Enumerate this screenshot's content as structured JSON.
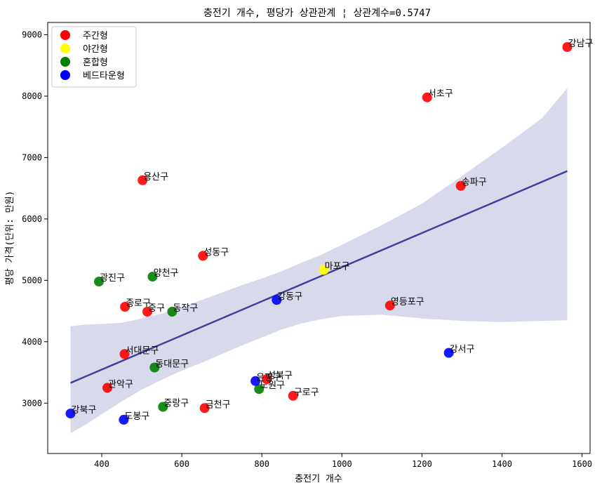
{
  "chart_data": {
    "type": "scatter",
    "title": "충전기 개수, 평당가 상관관계 ¦ 상관계수=0.5747",
    "xlabel": "충전기 개수",
    "ylabel": "평당 가격(단위: 만원)",
    "xlim": [
      265,
      1620
    ],
    "ylim": [
      2180,
      9200
    ],
    "xticks": [
      400,
      600,
      800,
      1000,
      1200,
      1400,
      1600
    ],
    "yticks": [
      3000,
      4000,
      5000,
      6000,
      7000,
      8000,
      9000
    ],
    "grid": false,
    "legend_position": "top-left",
    "categories": [
      {
        "key": "day",
        "name": "주간형",
        "color": "#ff0000"
      },
      {
        "key": "night",
        "name": "야간형",
        "color": "#ffff00"
      },
      {
        "key": "mixed",
        "name": "혼합형",
        "color": "#008000"
      },
      {
        "key": "bed",
        "name": "베드타운형",
        "color": "#0000ff"
      }
    ],
    "points": [
      {
        "label": "강남구",
        "x": 1563,
        "y": 8800,
        "cat": "day"
      },
      {
        "label": "서초구",
        "x": 1213,
        "y": 7980,
        "cat": "day"
      },
      {
        "label": "송파구",
        "x": 1297,
        "y": 6540,
        "cat": "day"
      },
      {
        "label": "용산구",
        "x": 502,
        "y": 6630,
        "cat": "day"
      },
      {
        "label": "성동구",
        "x": 653,
        "y": 5400,
        "cat": "day"
      },
      {
        "label": "종로구",
        "x": 458,
        "y": 4570,
        "cat": "day"
      },
      {
        "label": "중구",
        "x": 514,
        "y": 4490,
        "cat": "day"
      },
      {
        "label": "영등포구",
        "x": 1120,
        "y": 4590,
        "cat": "day"
      },
      {
        "label": "서대문구",
        "x": 457,
        "y": 3800,
        "cat": "day"
      },
      {
        "label": "관악구",
        "x": 414,
        "y": 3250,
        "cat": "day"
      },
      {
        "label": "성북구",
        "x": 812,
        "y": 3390,
        "cat": "day"
      },
      {
        "label": "구로구",
        "x": 878,
        "y": 3120,
        "cat": "day"
      },
      {
        "label": "금천구",
        "x": 657,
        "y": 2920,
        "cat": "day"
      },
      {
        "label": "마포구",
        "x": 955,
        "y": 5170,
        "cat": "night"
      },
      {
        "label": "광진구",
        "x": 393,
        "y": 4980,
        "cat": "mixed"
      },
      {
        "label": "양천구",
        "x": 527,
        "y": 5060,
        "cat": "mixed"
      },
      {
        "label": "동작구",
        "x": 576,
        "y": 4490,
        "cat": "mixed"
      },
      {
        "label": "동대문구",
        "x": 532,
        "y": 3580,
        "cat": "mixed"
      },
      {
        "label": "노원구",
        "x": 793,
        "y": 3230,
        "cat": "mixed"
      },
      {
        "label": "중랑구",
        "x": 553,
        "y": 2940,
        "cat": "mixed"
      },
      {
        "label": "강동구",
        "x": 837,
        "y": 4680,
        "cat": "bed"
      },
      {
        "label": "강서구",
        "x": 1267,
        "y": 3820,
        "cat": "bed"
      },
      {
        "label": "은평구",
        "x": 784,
        "y": 3360,
        "cat": "bed"
      },
      {
        "label": "강북구",
        "x": 322,
        "y": 2830,
        "cat": "bed"
      },
      {
        "label": "도봉구",
        "x": 455,
        "y": 2730,
        "cat": "bed"
      }
    ],
    "regression": {
      "line": [
        [
          322,
          3330
        ],
        [
          1563,
          6780
        ]
      ],
      "band_color": "#d9d9ec",
      "line_color": "#3f3f9f",
      "band_upper": [
        [
          322,
          4250
        ],
        [
          360,
          4280
        ],
        [
          400,
          4290
        ],
        [
          450,
          4310
        ],
        [
          500,
          4380
        ],
        [
          550,
          4460
        ],
        [
          600,
          4560
        ],
        [
          650,
          4680
        ],
        [
          700,
          4800
        ],
        [
          750,
          4920
        ],
        [
          800,
          5030
        ],
        [
          850,
          5150
        ],
        [
          900,
          5290
        ],
        [
          950,
          5420
        ],
        [
          1000,
          5580
        ],
        [
          1100,
          5900
        ],
        [
          1200,
          6250
        ],
        [
          1300,
          6700
        ],
        [
          1400,
          7160
        ],
        [
          1500,
          7640
        ],
        [
          1563,
          8130
        ]
      ],
      "band_lower": [
        [
          1563,
          4350
        ],
        [
          1500,
          4340
        ],
        [
          1400,
          4320
        ],
        [
          1300,
          4340
        ],
        [
          1200,
          4380
        ],
        [
          1100,
          4440
        ],
        [
          1000,
          4420
        ],
        [
          950,
          4370
        ],
        [
          900,
          4300
        ],
        [
          850,
          4200
        ],
        [
          800,
          4070
        ],
        [
          750,
          3940
        ],
        [
          700,
          3800
        ],
        [
          650,
          3660
        ],
        [
          600,
          3530
        ],
        [
          550,
          3380
        ],
        [
          500,
          3220
        ],
        [
          450,
          3030
        ],
        [
          400,
          2820
        ],
        [
          360,
          2650
        ],
        [
          322,
          2510
        ]
      ]
    }
  }
}
